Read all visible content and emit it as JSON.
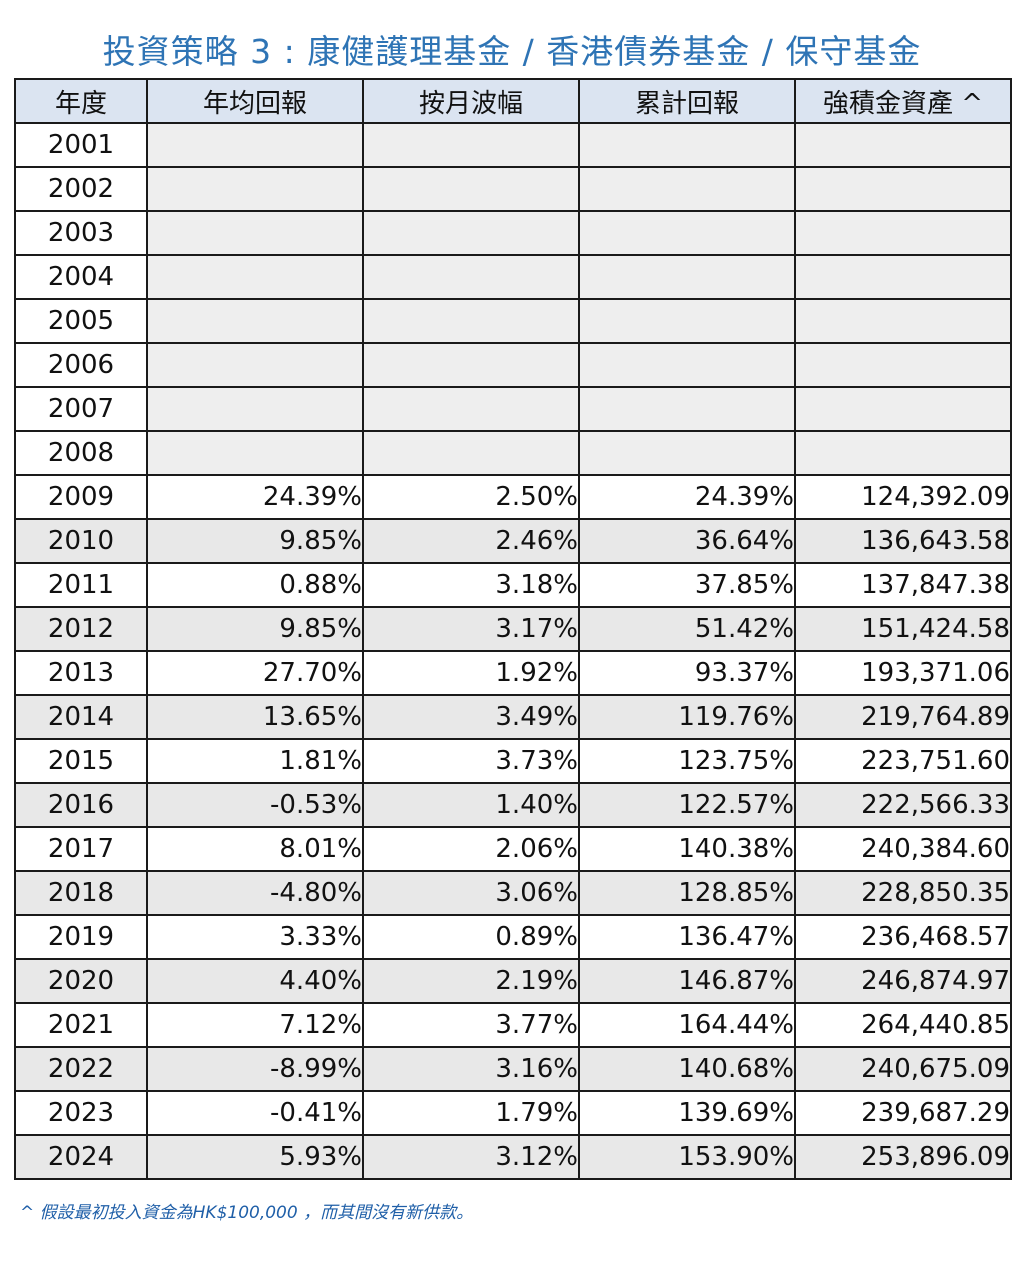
{
  "title": "投資策略 3 : 康健護理基金 / 香港債券基金  /  保守基金",
  "colors": {
    "title": "#2e74b5",
    "header_bg": "#dbe4f1",
    "positive": "#1fa14a",
    "negative": "#e01b1b",
    "asset": "#1f6fb2",
    "row_shade": "#e8e8e8"
  },
  "table": {
    "headers": [
      "年度",
      "年均回報",
      "按月波幅",
      "累計回報",
      "強積金資產 ^"
    ],
    "rows": [
      {
        "year": "2001",
        "ret": "",
        "vol": "",
        "cum": "",
        "mpf": ""
      },
      {
        "year": "2002",
        "ret": "",
        "vol": "",
        "cum": "",
        "mpf": ""
      },
      {
        "year": "2003",
        "ret": "",
        "vol": "",
        "cum": "",
        "mpf": ""
      },
      {
        "year": "2004",
        "ret": "",
        "vol": "",
        "cum": "",
        "mpf": ""
      },
      {
        "year": "2005",
        "ret": "",
        "vol": "",
        "cum": "",
        "mpf": ""
      },
      {
        "year": "2006",
        "ret": "",
        "vol": "",
        "cum": "",
        "mpf": ""
      },
      {
        "year": "2007",
        "ret": "",
        "vol": "",
        "cum": "",
        "mpf": ""
      },
      {
        "year": "2008",
        "ret": "",
        "vol": "",
        "cum": "",
        "mpf": ""
      },
      {
        "year": "2009",
        "ret": "24.39%",
        "vol": "2.50%",
        "cum": "24.39%",
        "mpf": "124,392.09"
      },
      {
        "year": "2010",
        "ret": "9.85%",
        "vol": "2.46%",
        "cum": "36.64%",
        "mpf": "136,643.58"
      },
      {
        "year": "2011",
        "ret": "0.88%",
        "vol": "3.18%",
        "cum": "37.85%",
        "mpf": "137,847.38"
      },
      {
        "year": "2012",
        "ret": "9.85%",
        "vol": "3.17%",
        "cum": "51.42%",
        "mpf": "151,424.58"
      },
      {
        "year": "2013",
        "ret": "27.70%",
        "vol": "1.92%",
        "cum": "93.37%",
        "mpf": "193,371.06"
      },
      {
        "year": "2014",
        "ret": "13.65%",
        "vol": "3.49%",
        "cum": "119.76%",
        "mpf": "219,764.89"
      },
      {
        "year": "2015",
        "ret": "1.81%",
        "vol": "3.73%",
        "cum": "123.75%",
        "mpf": "223,751.60"
      },
      {
        "year": "2016",
        "ret": "-0.53%",
        "vol": "1.40%",
        "cum": "122.57%",
        "mpf": "222,566.33"
      },
      {
        "year": "2017",
        "ret": "8.01%",
        "vol": "2.06%",
        "cum": "140.38%",
        "mpf": "240,384.60"
      },
      {
        "year": "2018",
        "ret": "-4.80%",
        "vol": "3.06%",
        "cum": "128.85%",
        "mpf": "228,850.35"
      },
      {
        "year": "2019",
        "ret": "3.33%",
        "vol": "0.89%",
        "cum": "136.47%",
        "mpf": "236,468.57"
      },
      {
        "year": "2020",
        "ret": "4.40%",
        "vol": "2.19%",
        "cum": "146.87%",
        "mpf": "246,874.97"
      },
      {
        "year": "2021",
        "ret": "7.12%",
        "vol": "3.77%",
        "cum": "164.44%",
        "mpf": "264,440.85"
      },
      {
        "year": "2022",
        "ret": "-8.99%",
        "vol": "3.16%",
        "cum": "140.68%",
        "mpf": "240,675.09"
      },
      {
        "year": "2023",
        "ret": "-0.41%",
        "vol": "1.79%",
        "cum": "139.69%",
        "mpf": "239,687.29"
      },
      {
        "year": "2024",
        "ret": "5.93%",
        "vol": "3.12%",
        "cum": "153.90%",
        "mpf": "253,896.09"
      }
    ]
  },
  "footnote": "^ 假設最初投入資金為HK$100,000 ，而其間沒有新供款。"
}
